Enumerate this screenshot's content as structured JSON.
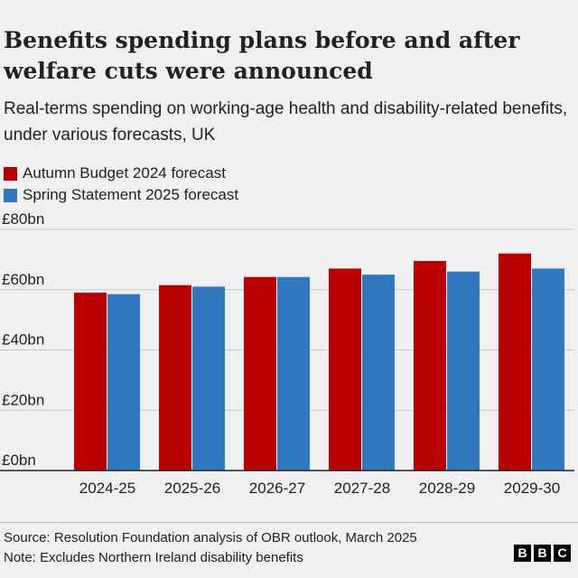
{
  "title": "Benefits spending plans before and after welfare cuts were announced",
  "subtitle": "Real-terms spending on working-age health and disability-related benefits, under various forecasts, UK",
  "source": "Source: Resolution Foundation analysis of OBR outlook, March 2025",
  "note": "Note: Excludes Northern Ireland disability benefits",
  "logo": [
    "B",
    "B",
    "C"
  ],
  "colors": {
    "autumn": "#b80000",
    "spring": "#2f78c0",
    "grid": "#c8c8c8",
    "axis": "#222222"
  },
  "chart_data": {
    "type": "bar",
    "categories": [
      "2024-25",
      "2025-26",
      "2026-27",
      "2027-28",
      "2028-29",
      "2029-30"
    ],
    "series": [
      {
        "name": "Autumn Budget 2024 forecast",
        "values": [
          59,
          61.5,
          64.2,
          67,
          69.5,
          72
        ]
      },
      {
        "name": "Spring Statement 2025 forecast",
        "values": [
          58.5,
          61,
          64.2,
          65,
          66,
          67
        ]
      }
    ],
    "yticks": [
      "£0bn",
      "£20bn",
      "£40bn",
      "£60bn",
      "£80bn"
    ],
    "ylim": [
      0,
      80
    ],
    "grid": true,
    "legend": "top-left"
  }
}
